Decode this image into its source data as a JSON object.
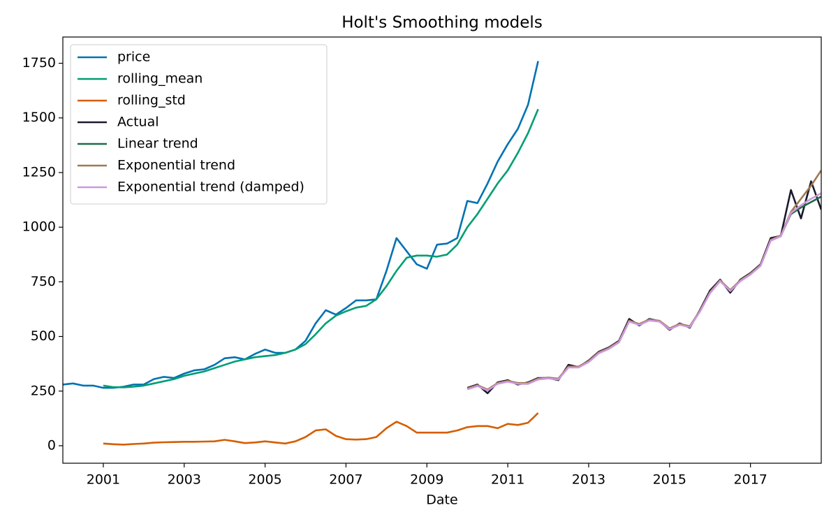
{
  "chart_data": {
    "type": "line",
    "title": "Holt's Smoothing models",
    "x_label": "Date",
    "xlim": [
      2000,
      2018.75
    ],
    "xticks": [
      2001,
      2003,
      2005,
      2007,
      2009,
      2011,
      2013,
      2015,
      2017
    ],
    "ylim": [
      -80,
      1870
    ],
    "yticks": [
      0,
      250,
      500,
      750,
      1000,
      1250,
      1500,
      1750
    ],
    "legend": "upper left",
    "series": [
      {
        "name": "price",
        "color": "#0072b2",
        "x": [
          2000,
          2000.25,
          2000.5,
          2000.75,
          2001,
          2001.25,
          2001.5,
          2001.75,
          2002,
          2002.25,
          2002.5,
          2002.75,
          2003,
          2003.25,
          2003.5,
          2003.75,
          2004,
          2004.25,
          2004.5,
          2004.75,
          2005,
          2005.25,
          2005.5,
          2005.75,
          2006,
          2006.25,
          2006.5,
          2006.75,
          2007,
          2007.25,
          2007.5,
          2007.75,
          2008,
          2008.25,
          2008.5,
          2008.75,
          2009,
          2009.25,
          2009.5,
          2009.75,
          2010,
          2010.25,
          2010.5,
          2010.75,
          2011,
          2011.25,
          2011.5,
          2011.75
        ],
        "values": [
          280,
          285,
          275,
          275,
          265,
          265,
          270,
          280,
          280,
          305,
          315,
          310,
          330,
          345,
          350,
          370,
          400,
          405,
          395,
          420,
          440,
          425,
          425,
          440,
          480,
          560,
          620,
          600,
          630,
          665,
          665,
          670,
          800,
          950,
          890,
          830,
          810,
          920,
          925,
          950,
          1120,
          1110,
          1200,
          1300,
          1380,
          1450,
          1560,
          1760
        ]
      },
      {
        "name": "rolling_mean",
        "color": "#009e73",
        "x": [
          2001,
          2001.25,
          2001.5,
          2001.75,
          2002,
          2002.25,
          2002.5,
          2002.75,
          2003,
          2003.25,
          2003.5,
          2003.75,
          2004,
          2004.25,
          2004.5,
          2004.75,
          2005,
          2005.25,
          2005.5,
          2005.75,
          2006,
          2006.25,
          2006.5,
          2006.75,
          2007,
          2007.25,
          2007.5,
          2007.75,
          2008,
          2008.25,
          2008.5,
          2008.75,
          2009,
          2009.25,
          2009.5,
          2009.75,
          2010,
          2010.25,
          2010.5,
          2010.75,
          2011,
          2011.25,
          2011.5,
          2011.75
        ],
        "values": [
          275,
          268,
          267,
          270,
          275,
          285,
          295,
          305,
          320,
          330,
          340,
          355,
          370,
          385,
          395,
          405,
          410,
          415,
          425,
          440,
          465,
          510,
          560,
          595,
          615,
          632,
          640,
          670,
          730,
          800,
          860,
          870,
          870,
          865,
          875,
          920,
          1000,
          1060,
          1130,
          1200,
          1260,
          1340,
          1430,
          1540
        ]
      },
      {
        "name": "rolling_std",
        "color": "#d55e00",
        "x": [
          2001,
          2001.25,
          2001.5,
          2001.75,
          2002,
          2002.25,
          2002.5,
          2002.75,
          2003,
          2003.25,
          2003.5,
          2003.75,
          2004,
          2004.25,
          2004.5,
          2004.75,
          2005,
          2005.25,
          2005.5,
          2005.75,
          2006,
          2006.25,
          2006.5,
          2006.75,
          2007,
          2007.25,
          2007.5,
          2007.75,
          2008,
          2008.25,
          2008.5,
          2008.75,
          2009,
          2009.25,
          2009.5,
          2009.75,
          2010,
          2010.25,
          2010.5,
          2010.75,
          2011,
          2011.25,
          2011.5,
          2011.75
        ],
        "values": [
          10,
          7,
          5,
          8,
          10,
          14,
          16,
          17,
          18,
          18,
          19,
          20,
          27,
          20,
          12,
          15,
          20,
          15,
          10,
          20,
          40,
          70,
          75,
          45,
          30,
          28,
          30,
          40,
          80,
          110,
          90,
          60,
          60,
          60,
          60,
          70,
          85,
          90,
          90,
          80,
          100,
          95,
          105,
          150
        ]
      },
      {
        "name": "Actual",
        "color": "#1a1a2e",
        "x": [
          2010,
          2010.25,
          2010.5,
          2010.75,
          2011,
          2011.25,
          2011.5,
          2011.75,
          2012,
          2012.25,
          2012.5,
          2012.75,
          2013,
          2013.25,
          2013.5,
          2013.75,
          2014,
          2014.25,
          2014.5,
          2014.75,
          2015,
          2015.25,
          2015.5,
          2015.75,
          2016,
          2016.25,
          2016.5,
          2016.75,
          2017,
          2017.25,
          2017.5,
          2017.75,
          2018,
          2018.25,
          2018.5,
          2018.75
        ],
        "values": [
          265,
          280,
          240,
          290,
          300,
          280,
          290,
          310,
          310,
          300,
          370,
          360,
          390,
          430,
          450,
          480,
          580,
          550,
          580,
          570,
          530,
          560,
          540,
          620,
          710,
          760,
          700,
          760,
          790,
          830,
          950,
          960,
          1170,
          1040,
          1210,
          1080
        ]
      },
      {
        "name": "Linear trend",
        "color": "#1f6b4a",
        "x": [
          2010,
          2010.25,
          2010.5,
          2010.75,
          2011,
          2011.25,
          2011.5,
          2011.75,
          2012,
          2012.25,
          2012.5,
          2012.75,
          2013,
          2013.25,
          2013.5,
          2013.75,
          2014,
          2014.25,
          2014.5,
          2014.75,
          2015,
          2015.25,
          2015.5,
          2015.75,
          2016,
          2016.25,
          2016.5,
          2016.75,
          2017,
          2017.25,
          2017.5,
          2017.75,
          2018,
          2018.25,
          2018.5,
          2018.75
        ],
        "values": [
          260,
          275,
          255,
          285,
          295,
          285,
          285,
          305,
          310,
          305,
          360,
          360,
          385,
          425,
          445,
          475,
          570,
          555,
          575,
          570,
          535,
          555,
          545,
          615,
          700,
          755,
          710,
          755,
          785,
          825,
          940,
          960,
          1060,
          1090,
          1115,
          1140
        ]
      },
      {
        "name": "Exponential trend",
        "color": "#a07850",
        "x": [
          2010,
          2010.25,
          2010.5,
          2010.75,
          2011,
          2011.25,
          2011.5,
          2011.75,
          2012,
          2012.25,
          2012.5,
          2012.75,
          2013,
          2013.25,
          2013.5,
          2013.75,
          2014,
          2014.25,
          2014.5,
          2014.75,
          2015,
          2015.25,
          2015.5,
          2015.75,
          2016,
          2016.25,
          2016.5,
          2016.75,
          2017,
          2017.25,
          2017.5,
          2017.75,
          2018,
          2018.25,
          2018.5,
          2018.75
        ],
        "values": [
          262,
          277,
          257,
          287,
          297,
          287,
          287,
          307,
          312,
          307,
          362,
          362,
          387,
          427,
          447,
          477,
          572,
          557,
          577,
          572,
          537,
          557,
          547,
          617,
          702,
          757,
          712,
          757,
          787,
          827,
          942,
          962,
          1070,
          1130,
          1190,
          1260
        ]
      },
      {
        "name": "Exponential trend (damped)",
        "color": "#cc99dd",
        "x": [
          2010,
          2010.25,
          2010.5,
          2010.75,
          2011,
          2011.25,
          2011.5,
          2011.75,
          2012,
          2012.25,
          2012.5,
          2012.75,
          2013,
          2013.25,
          2013.5,
          2013.75,
          2014,
          2014.25,
          2014.5,
          2014.75,
          2015,
          2015.25,
          2015.5,
          2015.75,
          2016,
          2016.25,
          2016.5,
          2016.75,
          2017,
          2017.25,
          2017.5,
          2017.75,
          2018,
          2018.25,
          2018.5,
          2018.75
        ],
        "values": [
          258,
          273,
          253,
          283,
          293,
          283,
          283,
          303,
          308,
          303,
          358,
          358,
          383,
          423,
          443,
          473,
          568,
          553,
          573,
          568,
          533,
          553,
          543,
          613,
          698,
          753,
          708,
          753,
          783,
          823,
          938,
          958,
          1065,
          1100,
          1130,
          1155
        ]
      }
    ]
  }
}
